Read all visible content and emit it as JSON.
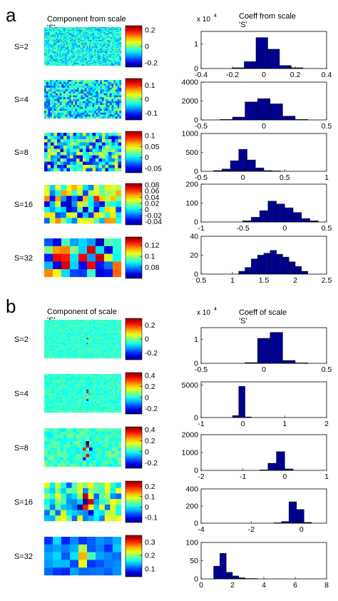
{
  "colors": {
    "bar_fill": "#00008f",
    "axis": "#000000",
    "background": "#ffffff"
  },
  "colormap": "jet",
  "panels": [
    {
      "letter": "a",
      "map_heading": "Component from scale",
      "map_heading_sub": "'S'",
      "hist_heading": "Coeff from scale",
      "hist_heading_sub": "'S'",
      "exponent_text": "x 10",
      "exponent_power": "4"
    },
    {
      "letter": "b",
      "map_heading": "Component of scale",
      "map_heading_sub": "'S'",
      "hist_heading": "Coeff of scale",
      "hist_heading_sub": "'S'",
      "exponent_text": "x 10",
      "exponent_power": "4"
    }
  ],
  "chart_data": [
    {
      "type": "heatmap",
      "panel": "a",
      "label": "S=2",
      "pattern": "fine-noise",
      "grid": [
        60,
        30
      ],
      "noise": 0.12,
      "base": 0.38,
      "cells": [],
      "colorbar": {
        "min": -0.25,
        "max": 0.25,
        "ticks": [
          0.2,
          0,
          -0.2
        ],
        "tick_labels": [
          "0.2",
          "0",
          "-0.2"
        ]
      }
    },
    {
      "type": "heatmap",
      "panel": "a",
      "label": "S=4",
      "pattern": "fine-noise",
      "grid": [
        40,
        20
      ],
      "noise": 0.18,
      "base": 0.36,
      "cells": [],
      "colorbar": {
        "min": -0.15,
        "max": 0.15,
        "ticks": [
          0.1,
          0,
          -0.1
        ],
        "tick_labels": [
          "0.1",
          "0",
          "-0.1"
        ]
      }
    },
    {
      "type": "heatmap",
      "panel": "a",
      "label": "S=8",
      "pattern": "noise",
      "grid": [
        24,
        12
      ],
      "noise": 0.28,
      "base": 0.35,
      "cells": [],
      "colorbar": {
        "min": -0.07,
        "max": 0.12,
        "ticks": [
          0.1,
          0.05,
          0,
          -0.05
        ],
        "tick_labels": [
          "0.1",
          "0.05",
          "0",
          "-0.05"
        ]
      }
    },
    {
      "type": "heatmap",
      "panel": "a",
      "label": "S=16",
      "pattern": "noise",
      "grid": [
        14,
        7
      ],
      "noise": 0.34,
      "base": 0.42,
      "cells": [
        [
          4,
          3,
          0.05
        ],
        [
          4,
          4,
          0.08
        ],
        [
          9,
          2,
          0.85
        ],
        [
          6,
          5,
          0.12
        ]
      ],
      "colorbar": {
        "min": -0.05,
        "max": 0.085,
        "ticks": [
          0.08,
          0.06,
          0.04,
          0.02,
          0,
          -0.02,
          -0.04
        ],
        "tick_labels": [
          "0.08",
          "0.06",
          "0.04",
          "0.02",
          "0",
          "-0.02",
          "-0.04"
        ]
      }
    },
    {
      "type": "heatmap",
      "panel": "a",
      "label": "S=32",
      "pattern": "coarse",
      "grid": [
        9,
        5
      ],
      "noise": 0.45,
      "base": 0.5,
      "cells": [],
      "colorbar": {
        "min": 0.06,
        "max": 0.135,
        "ticks": [
          0.12,
          0.1,
          0.08
        ],
        "tick_labels": [
          "0.12",
          "0.1",
          "0.08"
        ]
      }
    },
    {
      "type": "bar",
      "panel": "a",
      "label": "S=2",
      "xlim": [
        -0.4,
        0.4
      ],
      "ylim": [
        0,
        1.5
      ],
      "bin_edges": [
        -0.2,
        -0.125,
        -0.05,
        0.025,
        0.1,
        0.175,
        0.25
      ],
      "values": [
        0.03,
        0.28,
        1.25,
        0.78,
        0.12,
        0.03
      ],
      "x_ticks": [
        -0.4,
        -0.2,
        0,
        0.2,
        0.4
      ],
      "x_tick_labels": [
        "-0.4",
        "-0.2",
        "0",
        "0.2",
        "0.4"
      ],
      "y_ticks": [
        0,
        1
      ],
      "y_tick_labels": [
        "0",
        "1"
      ],
      "has_exponent": true
    },
    {
      "type": "bar",
      "panel": "a",
      "label": "S=4",
      "xlim": [
        -0.5,
        0.5
      ],
      "ylim": [
        0,
        4000
      ],
      "bin_edges": [
        -0.35,
        -0.25,
        -0.15,
        -0.05,
        0.05,
        0.15,
        0.25,
        0.35
      ],
      "values": [
        50,
        300,
        1900,
        2250,
        1700,
        400,
        50
      ],
      "x_ticks": [
        -0.5,
        0,
        0.5
      ],
      "x_tick_labels": [
        "-0.5",
        "0",
        "0.5"
      ],
      "y_ticks": [
        0,
        2000,
        4000
      ],
      "y_tick_labels": [
        "0",
        "2000",
        "4000"
      ]
    },
    {
      "type": "bar",
      "panel": "a",
      "label": "S=8",
      "xlim": [
        -0.5,
        1.0
      ],
      "ylim": [
        0,
        1000
      ],
      "bin_edges": [
        -0.35,
        -0.25,
        -0.15,
        -0.05,
        0.05,
        0.15,
        0.25,
        0.35,
        0.45
      ],
      "values": [
        20,
        60,
        280,
        580,
        300,
        90,
        20,
        10
      ],
      "x_ticks": [
        -0.5,
        0,
        0.5,
        1
      ],
      "x_tick_labels": [
        "-0.5",
        "0",
        "0.5",
        "1"
      ],
      "y_ticks": [
        0,
        500,
        1000
      ],
      "y_tick_labels": [
        "0",
        "500",
        "1000"
      ]
    },
    {
      "type": "bar",
      "panel": "a",
      "label": "S=16",
      "xlim": [
        -1,
        0.5
      ],
      "ylim": [
        0,
        200
      ],
      "bin_edges": [
        -0.5,
        -0.4,
        -0.3,
        -0.2,
        -0.1,
        0.0,
        0.1,
        0.2,
        0.3,
        0.4
      ],
      "values": [
        6,
        25,
        60,
        110,
        95,
        75,
        50,
        18,
        6
      ],
      "x_ticks": [
        -1,
        -0.5,
        0,
        0.5
      ],
      "x_tick_labels": [
        "-1",
        "-0.5",
        "0",
        "0.5"
      ],
      "y_ticks": [
        0,
        100,
        200
      ],
      "y_tick_labels": [
        "0",
        "100",
        "200"
      ]
    },
    {
      "type": "bar",
      "panel": "a",
      "label": "S=32",
      "xlim": [
        0.5,
        2.5
      ],
      "ylim": [
        0,
        40
      ],
      "bin_edges": [
        1.1,
        1.2,
        1.3,
        1.4,
        1.5,
        1.6,
        1.7,
        1.8,
        1.9,
        2.0,
        2.1,
        2.2
      ],
      "values": [
        3,
        7,
        16,
        20,
        22,
        25,
        21,
        18,
        13,
        8,
        3
      ],
      "x_ticks": [
        0.5,
        1,
        1.5,
        2,
        2.5
      ],
      "x_tick_labels": [
        "0.5",
        "1",
        "1.5",
        "2",
        "2.5"
      ],
      "y_ticks": [
        0,
        20,
        40
      ],
      "y_tick_labels": [
        "0",
        "20",
        "40"
      ]
    },
    {
      "type": "heatmap",
      "panel": "b",
      "label": "S=2",
      "pattern": "flat",
      "grid": [
        60,
        30
      ],
      "noise": 0.05,
      "base": 0.42,
      "cells": [
        [
          33,
          14,
          0.15
        ],
        [
          34,
          15,
          0.75
        ],
        [
          33,
          18,
          0.2
        ],
        [
          35,
          16,
          0.55
        ]
      ],
      "colorbar": {
        "min": -0.3,
        "max": 0.3,
        "ticks": [
          0.2,
          0,
          -0.2
        ],
        "tick_labels": [
          "0.2",
          "0",
          "-0.2"
        ]
      }
    },
    {
      "type": "heatmap",
      "panel": "b",
      "label": "S=4",
      "pattern": "flat",
      "grid": [
        40,
        20
      ],
      "noise": 0.05,
      "base": 0.42,
      "cells": [
        [
          22,
          8,
          0.95
        ],
        [
          22,
          9,
          0.2
        ],
        [
          23,
          10,
          0.75
        ],
        [
          22,
          13,
          0.15
        ],
        [
          21,
          12,
          0.7
        ]
      ],
      "colorbar": {
        "min": -0.3,
        "max": 0.45,
        "ticks": [
          0.4,
          0.2,
          0,
          -0.2
        ],
        "tick_labels": [
          "0.4",
          "0.2",
          "0",
          "-0.2"
        ]
      }
    },
    {
      "type": "heatmap",
      "panel": "b",
      "label": "S=8",
      "pattern": "flat",
      "grid": [
        24,
        12
      ],
      "noise": 0.07,
      "base": 0.43,
      "cells": [
        [
          13,
          4,
          0.0
        ],
        [
          13,
          5,
          0.95
        ],
        [
          12,
          6,
          0.85
        ],
        [
          14,
          6,
          0.1
        ],
        [
          13,
          8,
          0.9
        ],
        [
          12,
          9,
          0.15
        ]
      ],
      "colorbar": {
        "min": -0.3,
        "max": 0.45,
        "ticks": [
          0.4,
          0.2,
          0,
          -0.2
        ],
        "tick_labels": [
          "0.4",
          "0.2",
          "0",
          "-0.2"
        ]
      }
    },
    {
      "type": "heatmap",
      "panel": "b",
      "label": "S=16",
      "pattern": "noise",
      "grid": [
        14,
        7
      ],
      "noise": 0.22,
      "base": 0.42,
      "cells": [
        [
          7,
          2,
          0.95
        ],
        [
          7,
          3,
          0.05
        ],
        [
          8,
          3,
          0.9
        ],
        [
          7,
          4,
          0.85
        ],
        [
          6,
          4,
          0.02
        ],
        [
          8,
          5,
          0.1
        ]
      ],
      "colorbar": {
        "min": -0.15,
        "max": 0.25,
        "ticks": [
          0.2,
          0.1,
          0,
          -0.1
        ],
        "tick_labels": [
          "0.2",
          "0.1",
          "0",
          "-0.1"
        ]
      }
    },
    {
      "type": "heatmap",
      "panel": "b",
      "label": "S=32",
      "pattern": "blue",
      "grid": [
        9,
        5
      ],
      "noise": 0.2,
      "base": 0.14,
      "cells": [
        [
          4,
          1,
          0.55
        ],
        [
          4,
          2,
          0.7
        ],
        [
          5,
          2,
          0.45
        ],
        [
          4,
          3,
          0.6
        ],
        [
          3,
          2,
          0.35
        ]
      ],
      "colorbar": {
        "min": 0.04,
        "max": 0.35,
        "ticks": [
          0.3,
          0.2,
          0.1
        ],
        "tick_labels": [
          "0.3",
          "0.2",
          "0.1"
        ]
      }
    },
    {
      "type": "bar",
      "panel": "b",
      "label": "S=2",
      "xlim": [
        -0.5,
        0.5
      ],
      "ylim": [
        0,
        1.5
      ],
      "bin_edges": [
        -0.15,
        -0.05,
        0.05,
        0.15,
        0.25,
        0.35
      ],
      "values": [
        0.03,
        1.05,
        1.3,
        0.12,
        0.02
      ],
      "x_ticks": [
        -0.5,
        0,
        0.5
      ],
      "x_tick_labels": [
        "-0.5",
        "0",
        "0.5"
      ],
      "y_ticks": [
        0,
        1
      ],
      "y_tick_labels": [
        "0",
        "1"
      ],
      "has_exponent": true
    },
    {
      "type": "bar",
      "panel": "b",
      "label": "S=4",
      "xlim": [
        -1,
        2
      ],
      "ylim": [
        0,
        5500
      ],
      "bin_edges": [
        -0.25,
        -0.1,
        0.05,
        0.2
      ],
      "values": [
        300,
        4800,
        100
      ],
      "x_ticks": [
        -1,
        0,
        1,
        2
      ],
      "x_tick_labels": [
        "-1",
        "0",
        "1",
        "2"
      ],
      "y_ticks": [
        0,
        5000
      ],
      "y_tick_labels": [
        "0",
        "5000"
      ]
    },
    {
      "type": "bar",
      "panel": "b",
      "label": "S=8",
      "xlim": [
        -2,
        1
      ],
      "ylim": [
        0,
        2000
      ],
      "bin_edges": [
        -0.6,
        -0.4,
        -0.2,
        0.0,
        0.2
      ],
      "values": [
        30,
        400,
        1050,
        80
      ],
      "x_ticks": [
        -2,
        -1,
        0,
        1
      ],
      "x_tick_labels": [
        "-2",
        "-1",
        "0",
        "1"
      ],
      "y_ticks": [
        0,
        1000,
        2000
      ],
      "y_tick_labels": [
        "0",
        "1000",
        "2000"
      ]
    },
    {
      "type": "bar",
      "panel": "b",
      "label": "S=16",
      "xlim": [
        -4,
        1
      ],
      "ylim": [
        0,
        400
      ],
      "bin_edges": [
        -1.1,
        -0.8,
        -0.5,
        -0.2,
        0.1,
        0.4
      ],
      "values": [
        5,
        20,
        250,
        160,
        10
      ],
      "x_ticks": [
        -4,
        -2,
        0
      ],
      "x_tick_labels": [
        "-4",
        "-2",
        "0"
      ],
      "y_ticks": [
        0,
        200,
        400
      ],
      "y_tick_labels": [
        "0",
        "200",
        "400"
      ]
    },
    {
      "type": "bar",
      "panel": "b",
      "label": "S=32",
      "xlim": [
        0,
        8
      ],
      "ylim": [
        0,
        100
      ],
      "bin_edges": [
        0.8,
        1.2,
        1.6,
        2.0,
        2.4,
        2.8,
        3.2,
        3.6
      ],
      "values": [
        35,
        70,
        18,
        8,
        3,
        1,
        1
      ],
      "x_ticks": [
        0,
        2,
        4,
        6,
        8
      ],
      "x_tick_labels": [
        "0",
        "2",
        "4",
        "6",
        "8"
      ],
      "y_ticks": [
        0,
        50,
        100
      ],
      "y_tick_labels": [
        "0",
        "50",
        "100"
      ]
    }
  ]
}
